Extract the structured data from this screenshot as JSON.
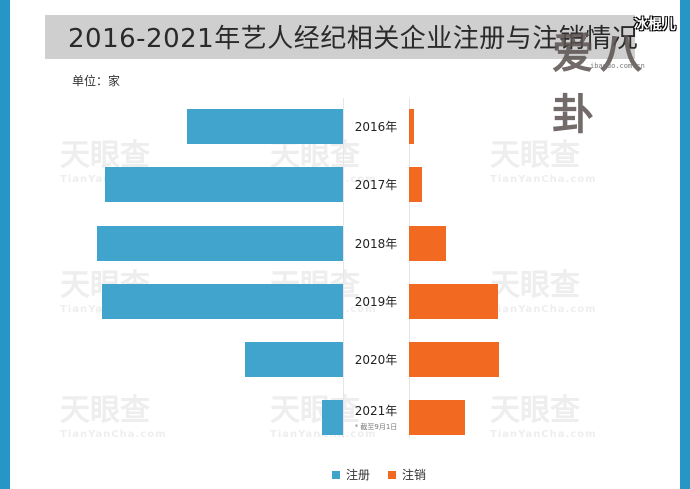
{
  "title": "2016-2021年艺人经纪相关企业注册与注销情况",
  "unit_label": "单位：家",
  "logo": {
    "text": "爱八卦",
    "badge": "冰棍儿",
    "url": "ibaguo.com.cn"
  },
  "watermark": {
    "text": "天眼查",
    "sub": "TianYanCha.com"
  },
  "legend": [
    {
      "label": "注册",
      "color": "#40a4cd"
    },
    {
      "label": "注销",
      "color": "#f26a22"
    }
  ],
  "note_2021": "* 截至9月1日",
  "chart_data": {
    "type": "bar",
    "orientation": "horizontal-butterfly",
    "title": "2016-2021年艺人经纪相关企业注册与注销情况",
    "unit": "家",
    "categories": [
      "2016年",
      "2017年",
      "2018年",
      "2019年",
      "2020年",
      "2021年"
    ],
    "series": [
      {
        "name": "注册",
        "color": "#40a4cd",
        "values": [
          156,
          238,
          246,
          241,
          98,
          21
        ],
        "direction": "left"
      },
      {
        "name": "注销",
        "color": "#f26a22",
        "values": [
          5,
          13,
          37,
          89,
          90,
          56
        ],
        "direction": "right"
      }
    ],
    "annotations": [
      "2021年 * 截至9月1日"
    ],
    "axis_values_note": "relative pixel lengths; no numeric axis shown",
    "grid": false,
    "legend_position": "bottom"
  }
}
